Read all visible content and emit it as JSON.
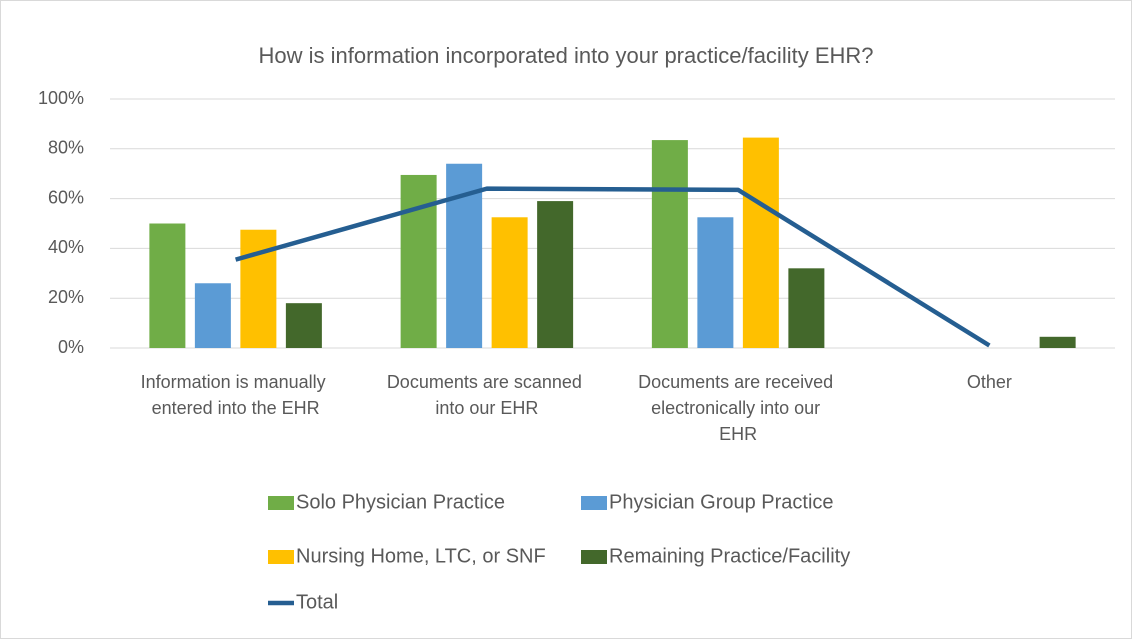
{
  "chart_data": {
    "type": "bar",
    "title": "How is information incorporated into your practice/facility EHR?",
    "categories": [
      "Information is manually entered into the EHR",
      "Documents are scanned into our EHR",
      "Documents are received electronically into our EHR",
      "Other"
    ],
    "series": [
      {
        "name": "Solo Physician Practice",
        "color": "#70ad47",
        "values": [
          50,
          69.5,
          83.5,
          0
        ]
      },
      {
        "name": "Physician Group Practice",
        "color": "#5b9bd5",
        "values": [
          26,
          74,
          52.5,
          0
        ]
      },
      {
        "name": "Nursing Home, LTC, or SNF",
        "color": "#ffc000",
        "values": [
          47.5,
          52.5,
          84.5,
          0
        ]
      },
      {
        "name": "Remaining Practice/Facility",
        "color": "#43682b",
        "values": [
          18,
          59,
          32,
          4.5
        ]
      },
      {
        "name": "Total",
        "type": "line",
        "color": "#255e91",
        "values": [
          35.5,
          64,
          63.5,
          1
        ]
      }
    ],
    "ylim": [
      0,
      100
    ],
    "yticks": [
      {
        "value": 0,
        "label": "0%"
      },
      {
        "value": 20,
        "label": "20%"
      },
      {
        "value": 40,
        "label": "40%"
      },
      {
        "value": 60,
        "label": "60%"
      },
      {
        "value": 80,
        "label": "80%"
      },
      {
        "value": 100,
        "label": "100%"
      }
    ],
    "grid": true,
    "legend": "bottom"
  }
}
